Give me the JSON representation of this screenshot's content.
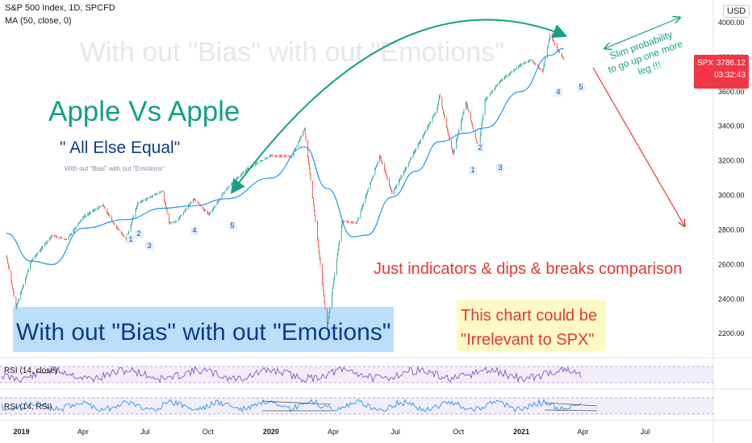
{
  "header": {
    "symbol_line": "S&P 500 Index, 1D, SPCFD",
    "ma_line": "MA (50, close, 0)",
    "currency": "USD"
  },
  "price_tag": {
    "symbol": "SPX",
    "price": "3786.12",
    "countdown": "03:32:43",
    "color": "#f23645"
  },
  "annotations": {
    "watermark": "With out \"Bias\" with out \"Emotions\"",
    "title": "Apple Vs Apple",
    "subtitle": "\" All Else Equal\"",
    "small_note": "With out \"Bias\" with out \"Emotions\"",
    "bottom_banner": "With out \"Bias\" with out \"Emotions\"",
    "comparison": "Just indicators & dips & breaks comparison",
    "irrelevant_line1": "This chart could be",
    "irrelevant_line2": "\"Irrelevant to SPX\"",
    "slim_line1": "Slim probability",
    "slim_line2": "to go up one more",
    "slim_line3": "leg !!!"
  },
  "wave_labels": {
    "first_cycle": [
      "1",
      "2",
      "3",
      "4",
      "5"
    ],
    "second_cycle": [
      "1",
      "2",
      "3",
      "4",
      "5"
    ]
  },
  "indicators": {
    "rsi_label": "RSI (14, close)",
    "rsi_rsi_label": "RSI (14, RSI)"
  },
  "colors": {
    "up_candle": "#26a69a",
    "down_candle": "#ef5350",
    "ma_line": "#2196f3",
    "teal_text": "#16a085",
    "navy_text": "#0d3b8c",
    "red_text": "#e53935",
    "rsi_line": "#7e57c2",
    "rsi2_line": "#2196f3"
  },
  "chart_data": {
    "type": "line",
    "title": "S&P 500 Index, 1D, SPCFD",
    "y_axis_ticks": [
      "4000.00",
      "3800.00",
      "3600.00",
      "3400.00",
      "3200.00",
      "3000.00",
      "2800.00",
      "2600.00",
      "2400.00",
      "2200.00"
    ],
    "ylim": [
      2080,
      4130
    ],
    "x_axis_ticks": [
      "2019",
      "Apr",
      "Jul",
      "Oct",
      "2020",
      "Apr",
      "Jul",
      "Oct",
      "2021",
      "Apr",
      "Jul"
    ],
    "series": [
      {
        "name": "S&P 500 Index",
        "x": [
          "2018-12-10",
          "2018-12-24",
          "2019-01-15",
          "2019-02-15",
          "2019-03-08",
          "2019-04-01",
          "2019-04-30",
          "2019-05-15",
          "2019-06-03",
          "2019-06-20",
          "2019-07-26",
          "2019-08-05",
          "2019-08-15",
          "2019-09-10",
          "2019-10-02",
          "2019-10-28",
          "2019-11-27",
          "2019-12-31",
          "2020-01-31",
          "2020-02-19",
          "2020-03-09",
          "2020-03-23",
          "2020-04-14",
          "2020-05-05",
          "2020-06-08",
          "2020-06-26",
          "2020-07-31",
          "2020-08-31",
          "2020-09-03",
          "2020-09-23",
          "2020-10-12",
          "2020-10-30",
          "2020-11-09",
          "2020-12-01",
          "2020-12-31",
          "2021-01-15",
          "2021-02-01",
          "2021-02-12",
          "2021-02-25",
          "2021-03-04"
        ],
        "values": [
          2650,
          2351,
          2620,
          2770,
          2743,
          2875,
          2945,
          2840,
          2744,
          2955,
          3025,
          2840,
          2848,
          2980,
          2888,
          3040,
          3153,
          3230,
          3225,
          3386,
          2746,
          2237,
          2850,
          2840,
          3230,
          3010,
          3270,
          3500,
          3580,
          3237,
          3540,
          3270,
          3550,
          3660,
          3756,
          3785,
          3715,
          3930,
          3829,
          3786
        ]
      },
      {
        "name": "MA (50, close, 0)",
        "x": [
          "2018-12-10",
          "2019-01-15",
          "2019-02-15",
          "2019-04-01",
          "2019-06-03",
          "2019-07-26",
          "2019-09-10",
          "2019-10-28",
          "2019-12-31",
          "2020-02-19",
          "2020-03-23",
          "2020-04-30",
          "2020-05-20",
          "2020-06-26",
          "2020-07-31",
          "2020-09-03",
          "2020-10-12",
          "2020-11-09",
          "2020-12-31",
          "2021-02-12",
          "2021-03-04"
        ],
        "values": [
          2780,
          2620,
          2600,
          2810,
          2860,
          2925,
          2940,
          2980,
          3100,
          3280,
          3040,
          2760,
          2770,
          2990,
          3140,
          3310,
          3360,
          3390,
          3600,
          3810,
          3850
        ]
      }
    ],
    "xlabel": "",
    "ylabel": "",
    "grid": false,
    "legend": "top-left"
  }
}
